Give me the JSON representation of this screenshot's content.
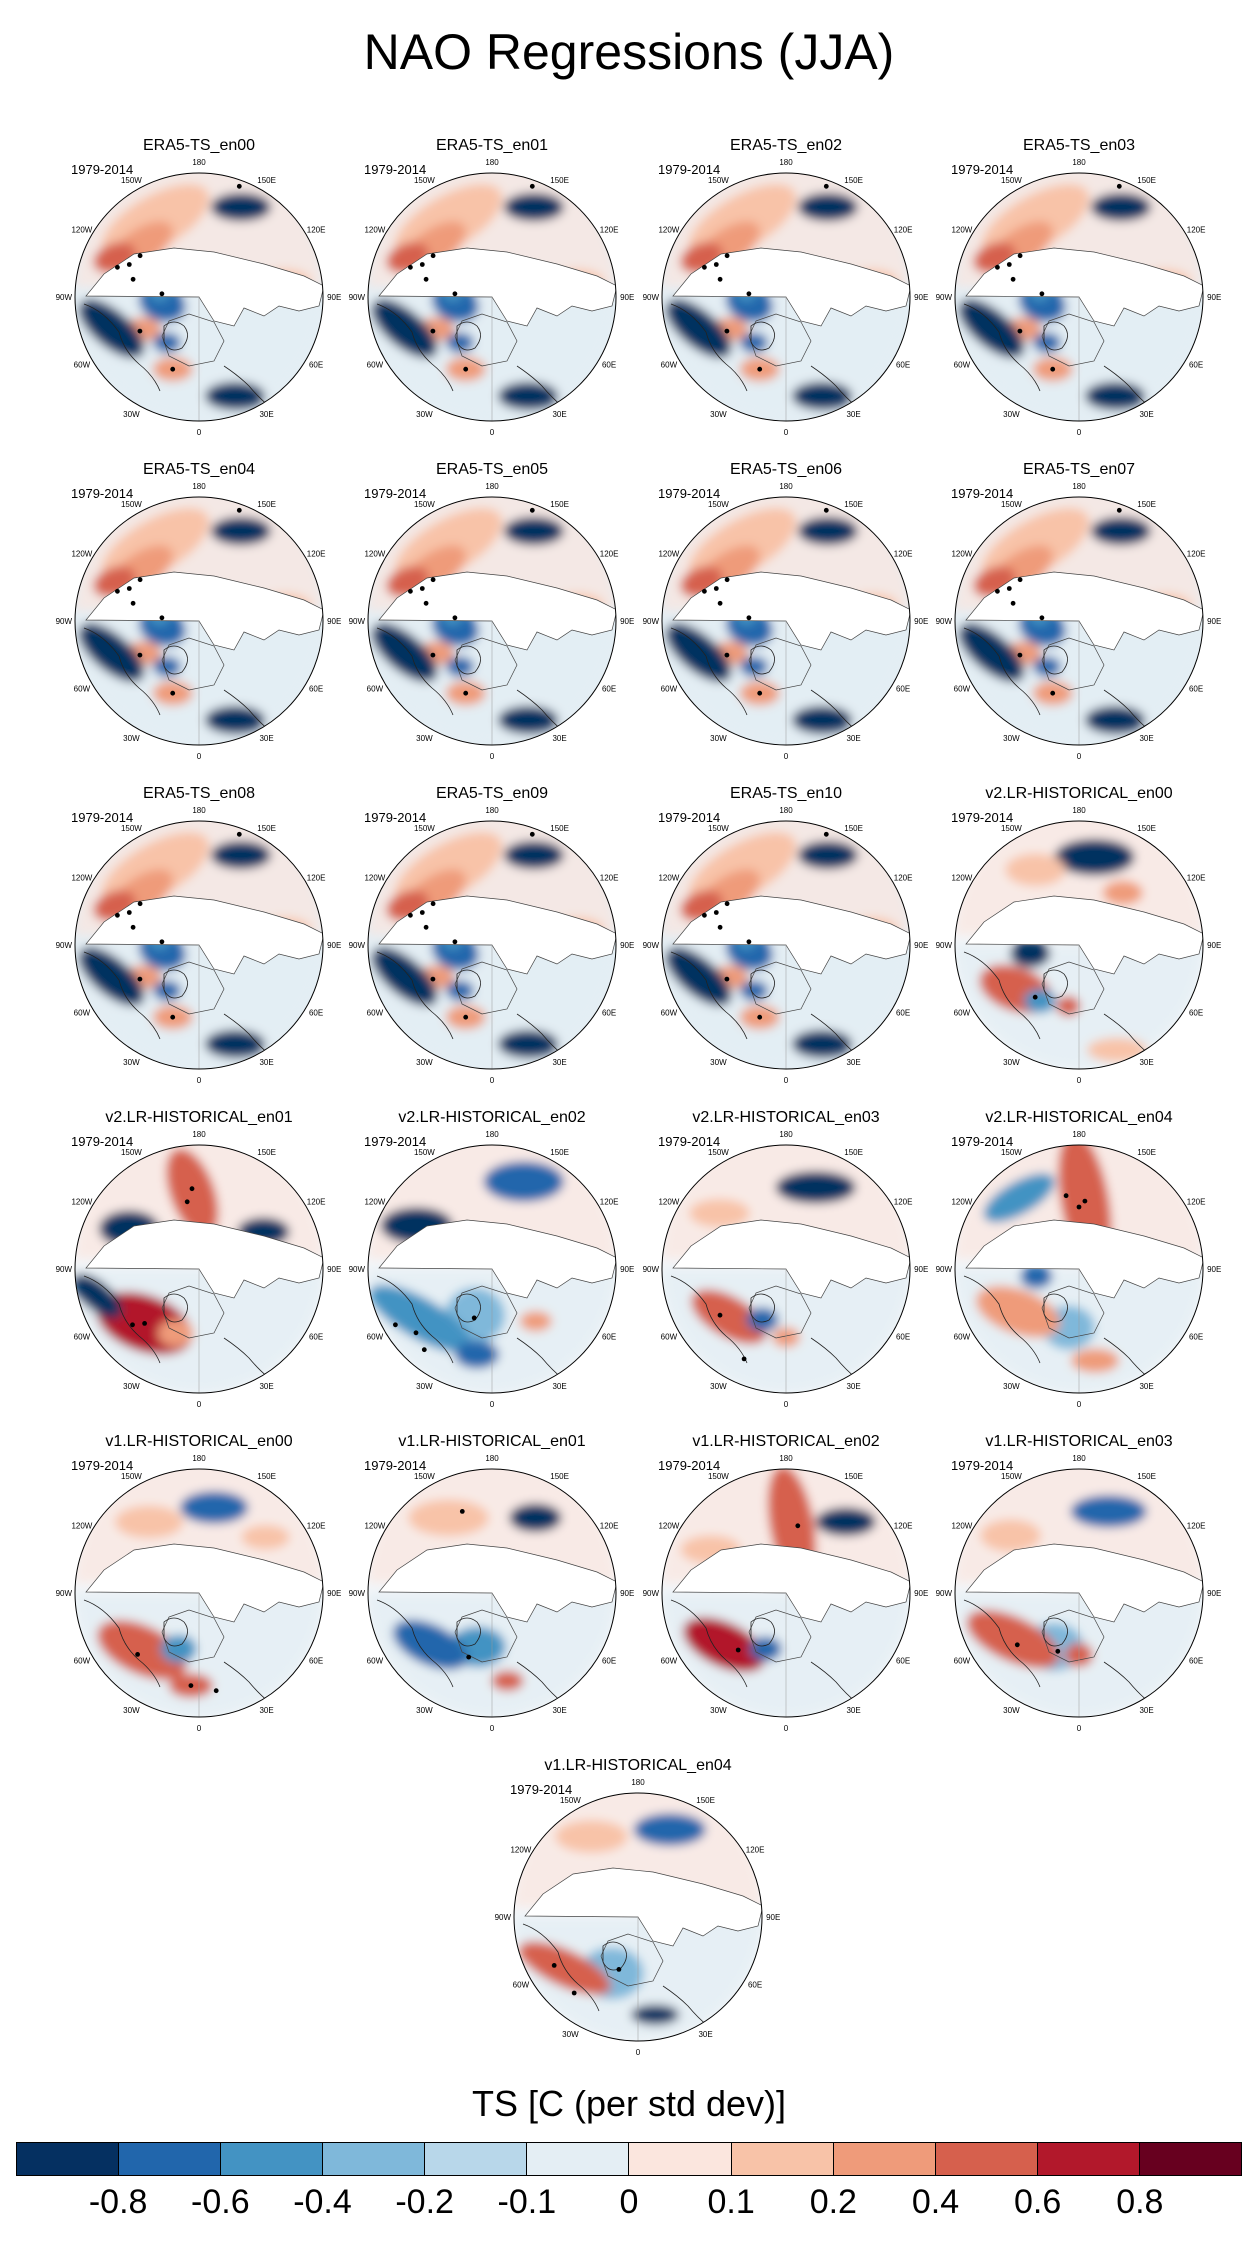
{
  "title": "NAO Regressions (JJA)",
  "period": "1979-2014",
  "lon_labels": {
    "lon_180": "180",
    "lon_150e": "150E",
    "lon_120e": "120E",
    "lon_90e": "90E",
    "lon_60e": "60E",
    "lon_30e": "30E",
    "lon_0": "0",
    "lon_30w": "30W",
    "lon_60w": "60W",
    "lon_90w": "90W",
    "lon_120w": "120W",
    "lon_150w": "150W"
  },
  "panels": [
    {
      "title": "ERA5-TS_en00",
      "style": "era5"
    },
    {
      "title": "ERA5-TS_en01",
      "style": "era5"
    },
    {
      "title": "ERA5-TS_en02",
      "style": "era5"
    },
    {
      "title": "ERA5-TS_en03",
      "style": "era5"
    },
    {
      "title": "ERA5-TS_en04",
      "style": "era5"
    },
    {
      "title": "ERA5-TS_en05",
      "style": "era5"
    },
    {
      "title": "ERA5-TS_en06",
      "style": "era5"
    },
    {
      "title": "ERA5-TS_en07",
      "style": "era5"
    },
    {
      "title": "ERA5-TS_en08",
      "style": "era5"
    },
    {
      "title": "ERA5-TS_en09",
      "style": "era5"
    },
    {
      "title": "ERA5-TS_en10",
      "style": "era5"
    },
    {
      "title": "v2.LR-HISTORICAL_en00",
      "style": "v2a"
    },
    {
      "title": "v2.LR-HISTORICAL_en01",
      "style": "v2b"
    },
    {
      "title": "v2.LR-HISTORICAL_en02",
      "style": "v2c"
    },
    {
      "title": "v2.LR-HISTORICAL_en03",
      "style": "v2d"
    },
    {
      "title": "v2.LR-HISTORICAL_en04",
      "style": "v2e"
    },
    {
      "title": "v1.LR-HISTORICAL_en00",
      "style": "v1a"
    },
    {
      "title": "v1.LR-HISTORICAL_en01",
      "style": "v1b"
    },
    {
      "title": "v1.LR-HISTORICAL_en02",
      "style": "v1c"
    },
    {
      "title": "v1.LR-HISTORICAL_en03",
      "style": "v1d"
    },
    {
      "title": "v1.LR-HISTORICAL_en04",
      "style": "v1e"
    }
  ],
  "colorbar": {
    "title": "TS [C (per std dev)]",
    "colors": [
      "#053061",
      "#2166ac",
      "#4393c3",
      "#7fb8da",
      "#b8d7ea",
      "#e4eef4",
      "#fbe6de",
      "#f8c3a8",
      "#ef9b7a",
      "#d6604d",
      "#b2182b",
      "#67001f"
    ],
    "tick_labels": [
      "-0.8",
      "-0.6",
      "-0.4",
      "-0.2",
      "-0.1",
      "0",
      "0.1",
      "0.2",
      "0.4",
      "0.6",
      "0.8"
    ]
  }
}
